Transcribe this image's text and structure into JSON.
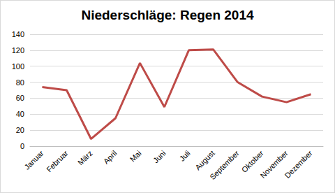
{
  "chart_data": {
    "type": "line",
    "title": "Niederschläge: Regen 2014",
    "categories": [
      "Januar",
      "Februar",
      "März",
      "April",
      "Mai",
      "Juni",
      "Juli",
      "August",
      "September",
      "Oktober",
      "November",
      "Dezember"
    ],
    "values": [
      74,
      70,
      9,
      35,
      104,
      49,
      120,
      121,
      80,
      62,
      55,
      65
    ],
    "color": "#be4b48",
    "ylim": [
      0,
      140
    ],
    "yticks": [
      0,
      20,
      40,
      60,
      80,
      100,
      120,
      140
    ],
    "grid": true
  }
}
